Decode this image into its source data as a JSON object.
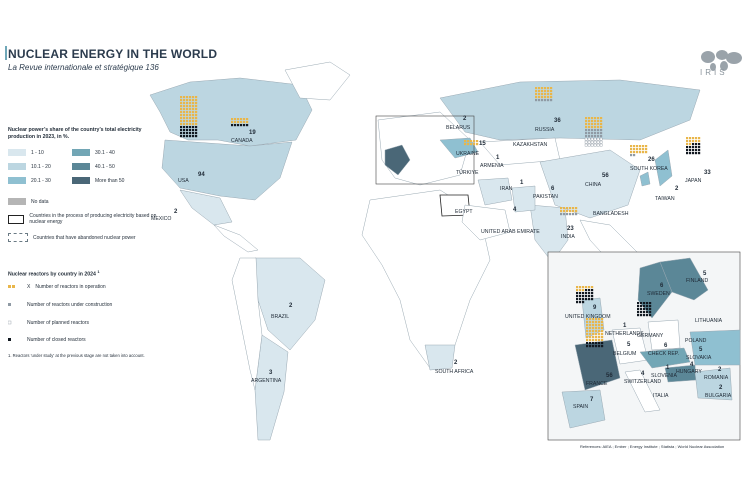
{
  "header": {
    "title": "NUCLEAR ENERGY IN THE WORLD",
    "subtitle": "La Revue internationale et stratégique 136",
    "logo_text": "IRIS"
  },
  "legend_share": {
    "title": "Nuclear power’s share of the country’s total electricity production in 2023, in %.",
    "classes": [
      {
        "label": "1 - 10",
        "color": "#d9e7ee"
      },
      {
        "label": "10.1 - 20",
        "color": "#bcd6e1"
      },
      {
        "label": "20.1 - 30",
        "color": "#8fc0d1"
      },
      {
        "label": "30.1 - 40",
        "color": "#72a6b5"
      },
      {
        "label": "40.1 - 50",
        "color": "#5b8797"
      },
      {
        "label": "More than 50",
        "color": "#4a6777"
      }
    ],
    "no_data": {
      "label": "No data",
      "color": "#b5b5b5"
    },
    "producing_label": "Countries in the process of producing electricity based on nuclear energy",
    "abandoned_label": "Countries that have abandoned nuclear power"
  },
  "legend_reactors": {
    "title": "Nuclear reactors by country in 2024",
    "title_mark": "1",
    "x_marker": "X",
    "operation": "Number of reactors in operation",
    "construction": "Number of reactors under construction",
    "planned": "Number of planned reactors",
    "closed": "Number of closed reactors",
    "note": "1.  Reactors ‘under study’ at the previous stage are not taken into account."
  },
  "references": "References: AIEA ; Ember ; Energy Institute ; Statista ; World Nuclear Association",
  "countries": [
    {
      "name": "USA",
      "count": "94"
    },
    {
      "name": "CANADA",
      "count": "19"
    },
    {
      "name": "MEXICO",
      "count": "2"
    },
    {
      "name": "BRAZIL",
      "count": "2"
    },
    {
      "name": "ARGENTINA",
      "count": "3"
    },
    {
      "name": "SOUTH AFRICA",
      "count": "2"
    },
    {
      "name": "BELARUS",
      "count": "2"
    },
    {
      "name": "UKRAINE",
      "count": "15"
    },
    {
      "name": "ARMENIA",
      "count": "1"
    },
    {
      "name": "TÜRKIYE",
      "count": ""
    },
    {
      "name": "IRAN",
      "count": "1"
    },
    {
      "name": "EGYPT",
      "count": ""
    },
    {
      "name": "RUSSIA",
      "count": "36"
    },
    {
      "name": "KAZAKHSTAN",
      "count": ""
    },
    {
      "name": "CHINA",
      "count": "56"
    },
    {
      "name": "PAKISTAN",
      "count": "6"
    },
    {
      "name": "INDIA",
      "count": "23"
    },
    {
      "name": "UNITED ARAB EMIRATE",
      "count": "4"
    },
    {
      "name": "BANGLADESH",
      "count": ""
    },
    {
      "name": "SOUTH KOREA",
      "count": "26"
    },
    {
      "name": "JAPAN",
      "count": "33"
    },
    {
      "name": "TAIWAN",
      "count": "2"
    }
  ],
  "europe": [
    {
      "name": "FINLAND",
      "count": "5"
    },
    {
      "name": "SWEDEN",
      "count": "6"
    },
    {
      "name": "UNITED KINGDOM",
      "count": "9"
    },
    {
      "name": "NETHERLANDS",
      "count": "1"
    },
    {
      "name": "GERMANY",
      "count": ""
    },
    {
      "name": "LITHUANIA",
      "count": ""
    },
    {
      "name": "POLAND",
      "count": ""
    },
    {
      "name": "BELGIUM",
      "count": "5"
    },
    {
      "name": "CHECK REP.",
      "count": "6"
    },
    {
      "name": "SLOVAKIA",
      "count": "5"
    },
    {
      "name": "HUNGARY",
      "count": "4"
    },
    {
      "name": "FRANCE",
      "count": "56"
    },
    {
      "name": "SWITZERLAND",
      "count": "4"
    },
    {
      "name": "SLOVENIA",
      "count": "1"
    },
    {
      "name": "ROMANIA",
      "count": "2"
    },
    {
      "name": "BULGARIA",
      "count": "2"
    },
    {
      "name": "ITALIA",
      "count": ""
    },
    {
      "name": "SPAIN",
      "count": "7"
    }
  ]
}
